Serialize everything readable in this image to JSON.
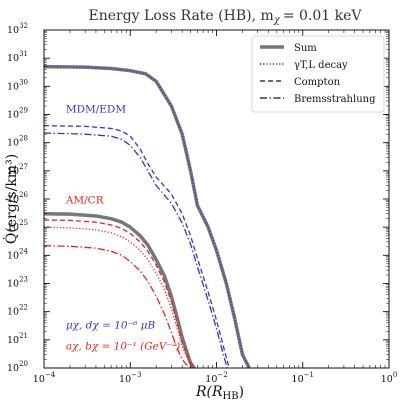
{
  "chart_data": {
    "type": "line",
    "title": "Energy Loss Rate (HB), m",
    "title_math": "χ",
    "title_value": "= 0.01 keV",
    "xlabel": "R(R",
    "xlabel_sub": "HB",
    "xlabel_close": ")",
    "ylabel": "Q̇(erg/s/km³)",
    "xscale": "log",
    "yscale": "log",
    "xlim": [
      0.0001,
      1
    ],
    "ylim": [
      1e+20,
      1e+32
    ],
    "x_ticks": [
      {
        "value": 0.0001,
        "base": "10",
        "exp": "−4"
      },
      {
        "value": 0.001,
        "base": "10",
        "exp": "−3"
      },
      {
        "value": 0.01,
        "base": "10",
        "exp": "−2"
      },
      {
        "value": 0.1,
        "base": "10",
        "exp": "−1"
      },
      {
        "value": 1,
        "base": "10",
        "exp": "0"
      }
    ],
    "y_ticks": [
      {
        "value": 1e+20,
        "base": "10",
        "exp": "20"
      },
      {
        "value": 1e+21,
        "base": "10",
        "exp": "21"
      },
      {
        "value": 1e+22,
        "base": "10",
        "exp": "22"
      },
      {
        "value": 1e+23,
        "base": "10",
        "exp": "23"
      },
      {
        "value": 1e+24,
        "base": "10",
        "exp": "24"
      },
      {
        "value": 1e+25,
        "base": "10",
        "exp": "25"
      },
      {
        "value": 1e+26,
        "base": "10",
        "exp": "26"
      },
      {
        "value": 1e+27,
        "base": "10",
        "exp": "27"
      },
      {
        "value": 1e+28,
        "base": "10",
        "exp": "28"
      },
      {
        "value": 1e+29,
        "base": "10",
        "exp": "29"
      },
      {
        "value": 1e+30,
        "base": "10",
        "exp": "30"
      },
      {
        "value": 1e+31,
        "base": "10",
        "exp": "31"
      },
      {
        "value": 1e+32,
        "base": "10",
        "exp": "32"
      }
    ],
    "legend": {
      "placement": "top-right",
      "entries": [
        {
          "label": "Sum",
          "style": "solid-thick"
        },
        {
          "label": "γT,L decay",
          "style": "dotted"
        },
        {
          "label": "Compton",
          "style": "dashed"
        },
        {
          "label": "Bremsstrahlung",
          "style": "dashdot"
        }
      ]
    },
    "annotations": [
      {
        "text": "MDM/EDM",
        "color": "#3333dd",
        "x": 0.000105,
        "y": 1.2e+29
      },
      {
        "text": "AM/CR",
        "color": "#ee2222",
        "x": 0.000105,
        "y": 7e+25
      },
      {
        "text": "μχ, dχ = 10⁻⁶ μB",
        "color": "#3333dd",
        "x": 0.000105,
        "y": 2.5e+21
      },
      {
        "text": "aχ, bχ = 10⁻¹ (GeV⁻²)",
        "color": "#ee2222",
        "x": 0.000105,
        "y": 4.5e+20
      }
    ],
    "series": [
      {
        "group": "MDM/EDM",
        "kind": "sum",
        "color": "#777777",
        "x": [
          0.0001,
          0.0003,
          0.0006,
          0.001,
          0.0015,
          0.002,
          0.003,
          0.004,
          0.005,
          0.006,
          0.008,
          0.01,
          0.013,
          0.016,
          0.02,
          0.024
        ],
        "y": [
          5e+30,
          4.8e+30,
          4.3e+30,
          3.6e+30,
          2.8e+30,
          1.5e+30,
          2e+29,
          2e+28,
          1e+27,
          6e+25,
          1e+25,
          1.5e+24,
          1e+23,
          7e+21,
          3e+20,
          1e+20
        ]
      },
      {
        "group": "MDM/EDM",
        "kind": "decay",
        "color": "#3333dd",
        "x": [
          0.0001,
          0.0003,
          0.0006,
          0.001,
          0.0015,
          0.002,
          0.003,
          0.004,
          0.005,
          0.006,
          0.008,
          0.01,
          0.013,
          0.016,
          0.02,
          0.024
        ],
        "y": [
          5e+30,
          4.8e+30,
          4.3e+30,
          3.6e+30,
          2.8e+30,
          1.5e+30,
          2e+29,
          2e+28,
          1e+27,
          6e+25,
          1e+25,
          1.5e+24,
          1e+23,
          7e+21,
          3e+20,
          1e+20
        ]
      },
      {
        "group": "MDM/EDM",
        "kind": "compton",
        "color": "#3333dd",
        "x": [
          0.0001,
          0.0003,
          0.0006,
          0.0008,
          0.001,
          0.0013,
          0.0016,
          0.002,
          0.003,
          0.004,
          0.005,
          0.006,
          0.008,
          0.01,
          0.012,
          0.014
        ],
        "y": [
          4e+28,
          3.8e+28,
          3.2e+28,
          2.6e+28,
          1.7e+28,
          6e+27,
          1.8e+27,
          6e+26,
          1.5e+26,
          3e+25,
          5e+24,
          8e+23,
          5e+22,
          5e+21,
          6e+20,
          1e+20
        ]
      },
      {
        "group": "MDM/EDM",
        "kind": "brems",
        "color": "#3333dd",
        "x": [
          0.0001,
          0.0003,
          0.0006,
          0.0008,
          0.001,
          0.0013,
          0.0016,
          0.002,
          0.003,
          0.004,
          0.005,
          0.006,
          0.008,
          0.01,
          0.012,
          0.0133
        ],
        "y": [
          2.2e+28,
          2e+28,
          1.7e+28,
          1.3e+28,
          8e+27,
          3e+27,
          1e+27,
          3e+26,
          7e+25,
          1.4e+25,
          2.5e+24,
          4e+23,
          2.5e+22,
          2.5e+21,
          3e+20,
          1e+20
        ]
      },
      {
        "group": "AM/CR",
        "kind": "sum",
        "color": "#777777",
        "x": [
          0.0001,
          0.0002,
          0.0004,
          0.0006,
          0.0008,
          0.001,
          0.0013,
          0.0016,
          0.002,
          0.0025,
          0.003,
          0.0035,
          0.004,
          0.0045,
          0.005,
          0.0055
        ],
        "y": [
          3e+25,
          2.9e+25,
          2.5e+25,
          2e+25,
          1.5e+25,
          1e+25,
          5e+24,
          2.3e+24,
          7e+23,
          1.8e+23,
          3.5e+22,
          6e+21,
          1.2e+21,
          4e+20,
          1.5e+20,
          1e+20
        ]
      },
      {
        "group": "AM/CR",
        "kind": "decay",
        "color": "#ee2222",
        "x": [
          0.0001,
          0.0002,
          0.0004,
          0.0006,
          0.0008,
          0.001,
          0.0013,
          0.0016,
          0.002,
          0.0025,
          0.003,
          0.0035,
          0.004,
          0.0045,
          0.005,
          0.0056
        ],
        "y": [
          1e+25,
          9.5e+24,
          8e+24,
          6.3e+24,
          4.5e+24,
          3e+24,
          1.5e+24,
          7e+23,
          2.3e+23,
          6e+22,
          1.3e+22,
          2.5e+21,
          6e+20,
          2.5e+20,
          1.4e+20,
          1e+20
        ]
      },
      {
        "group": "AM/CR",
        "kind": "compton",
        "color": "#ee2222",
        "x": [
          0.0001,
          0.0002,
          0.0004,
          0.0006,
          0.0008,
          0.001,
          0.0013,
          0.0016,
          0.002,
          0.0025,
          0.003,
          0.0035,
          0.004,
          0.0045,
          0.005,
          0.0056
        ],
        "y": [
          1.8e+25,
          1.75e+25,
          1.5e+25,
          1.2e+25,
          9e+24,
          6e+24,
          3e+24,
          1.4e+24,
          4.5e+23,
          1.1e+23,
          2.3e+22,
          4e+21,
          8e+20,
          3e+20,
          1.5e+20,
          1e+20
        ]
      },
      {
        "group": "AM/CR",
        "kind": "brems",
        "color": "#ee2222",
        "x": [
          0.0001,
          0.0002,
          0.0004,
          0.0006,
          0.0008,
          0.001,
          0.0013,
          0.0016,
          0.002,
          0.0025,
          0.003,
          0.0035,
          0.004,
          0.0045,
          0.005,
          0.0056
        ],
        "y": [
          2.2e+24,
          2.1e+24,
          1.8e+24,
          1.4e+24,
          1e+24,
          6e+23,
          2.8e+23,
          1.2e+23,
          3.5e+22,
          8e+21,
          1.8e+21,
          5e+20,
          2e+20,
          1.3e+20,
          1.1e+20,
          1e+20
        ]
      }
    ],
    "colors": {
      "sum": "#777777",
      "mdm": "#3333dd",
      "am": "#ee2222",
      "axis": "#111111",
      "title": "#333333"
    }
  }
}
